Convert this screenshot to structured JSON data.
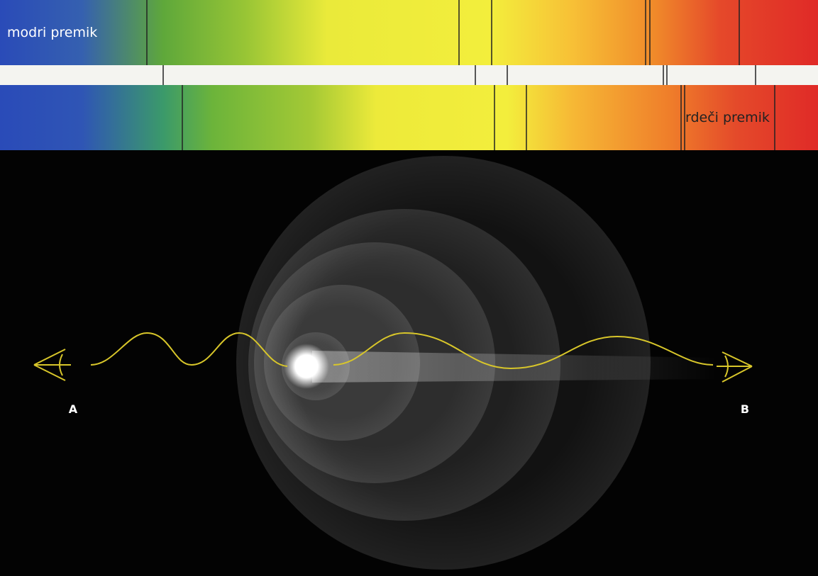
{
  "labels": {
    "blue_shift": "modri premik",
    "red_shift": "rdeči premik",
    "observer_a": "A",
    "observer_b": "B"
  }
}
